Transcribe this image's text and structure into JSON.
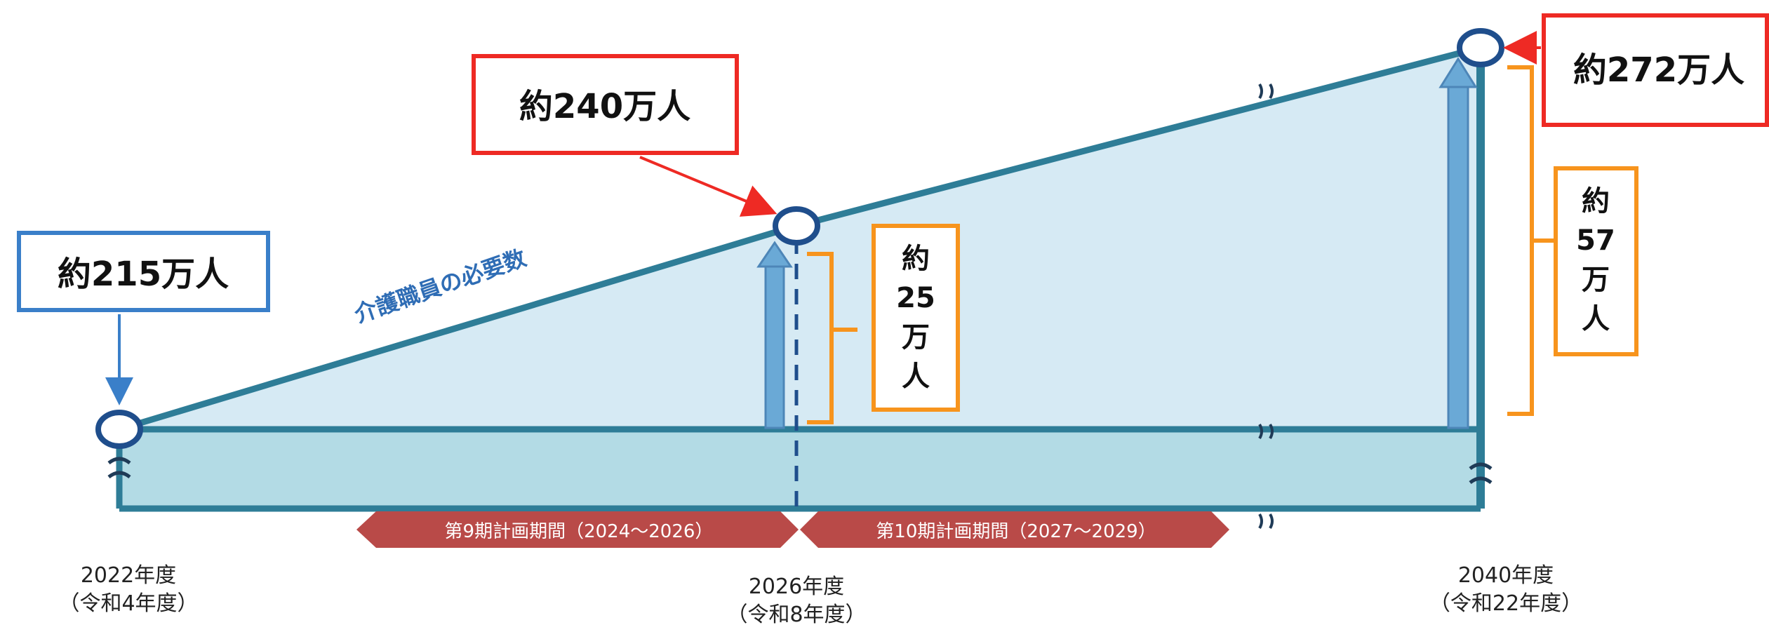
{
  "callouts": {
    "start_value": "約215万人",
    "mid_value": "約240万人",
    "end_value": "約272万人"
  },
  "increments": {
    "to_2026": [
      "約",
      "25",
      "万",
      "人"
    ],
    "to_2040": [
      "約",
      "57",
      "万",
      "人"
    ]
  },
  "trend_label": "介護職員の必要数",
  "periods": {
    "ninth": "第9期計画期間（2024～2026）",
    "tenth": "第10期計画期間（2027～2029）"
  },
  "years": {
    "y2022": {
      "year": "2022年度",
      "era": "（令和4年度）"
    },
    "y2026": {
      "year": "2026年度",
      "era": "（令和8年度）"
    },
    "y2040": {
      "year": "2040年度",
      "era": "（令和22年度）"
    }
  },
  "colors": {
    "line": "#2e7d97",
    "upper_fill": "#d6eaf4",
    "lower_fill": "#b3dbe5",
    "red": "#ee2a24",
    "orange": "#f7941d",
    "blue_box": "#3a7fc9",
    "arrow_blue": "#6aa9d6",
    "period_arrow": "#b94a48",
    "label_blue": "#2f6db5"
  },
  "icons": {
    "break_mark": "wavy-break-icon",
    "marker": "open-circle-marker"
  }
}
